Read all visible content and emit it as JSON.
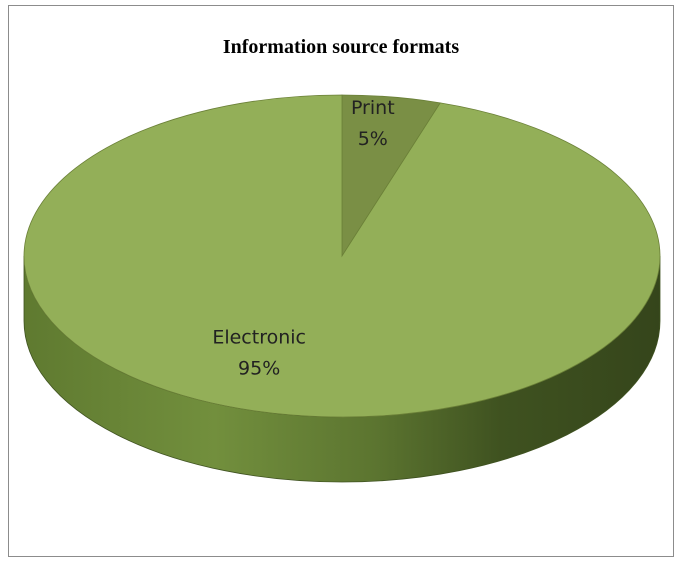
{
  "chart_data": {
    "type": "pie",
    "title": "Information source formats",
    "style": "3d",
    "slices": [
      {
        "label": "Print",
        "value": 5,
        "value_label": "5%",
        "color": "#7a8f45"
      },
      {
        "label": "Electronic",
        "value": 95,
        "value_label": "95%",
        "color": "#93af58"
      }
    ],
    "legend": "none"
  }
}
